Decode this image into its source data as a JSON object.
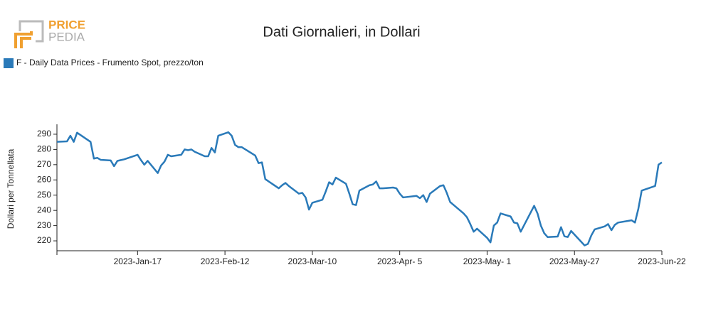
{
  "logo": {
    "top": "PRICE",
    "bottom": "PEDIA"
  },
  "chart_data": {
    "type": "line",
    "title": "Dati Giornalieri, in Dollari",
    "ylabel": "Dollari per Tonnellata",
    "xlim": [
      "2022-12-24",
      "2023-06-22"
    ],
    "xticks": [
      {
        "value": "2023-01-17",
        "label": "2023-Jan-17"
      },
      {
        "value": "2023-02-12",
        "label": "2023-Feb-12"
      },
      {
        "value": "2023-03-10",
        "label": "2023-Mar-10"
      },
      {
        "value": "2023-04-05",
        "label": "2023-Apr- 5"
      },
      {
        "value": "2023-05-01",
        "label": "2023-May- 1"
      },
      {
        "value": "2023-05-27",
        "label": "2023-May-27"
      },
      {
        "value": "2023-06-22",
        "label": "2023-Jun-22"
      }
    ],
    "ylim": [
      213.5,
      296.5
    ],
    "yticks": [
      220,
      230,
      240,
      250,
      260,
      270,
      280,
      290
    ],
    "x": [
      "2022-12-24",
      "2022-12-27",
      "2022-12-28",
      "2022-12-29",
      "2022-12-30",
      "2023-01-03",
      "2023-01-04",
      "2023-01-05",
      "2023-01-06",
      "2023-01-09",
      "2023-01-10",
      "2023-01-11",
      "2023-01-12",
      "2023-01-13",
      "2023-01-17",
      "2023-01-18",
      "2023-01-19",
      "2023-01-20",
      "2023-01-23",
      "2023-01-24",
      "2023-01-25",
      "2023-01-26",
      "2023-01-27",
      "2023-01-30",
      "2023-01-31",
      "2023-02-01",
      "2023-02-02",
      "2023-02-03",
      "2023-02-06",
      "2023-02-07",
      "2023-02-08",
      "2023-02-09",
      "2023-02-10",
      "2023-02-13",
      "2023-02-14",
      "2023-02-15",
      "2023-02-16",
      "2023-02-17",
      "2023-02-21",
      "2023-02-22",
      "2023-02-23",
      "2023-02-24",
      "2023-02-28",
      "2023-03-01",
      "2023-03-02",
      "2023-03-03",
      "2023-03-06",
      "2023-03-07",
      "2023-03-08",
      "2023-03-09",
      "2023-03-10",
      "2023-03-13",
      "2023-03-14",
      "2023-03-15",
      "2023-03-16",
      "2023-03-17",
      "2023-03-20",
      "2023-03-21",
      "2023-03-22",
      "2023-03-23",
      "2023-03-24",
      "2023-03-27",
      "2023-03-28",
      "2023-03-29",
      "2023-03-30",
      "2023-03-31",
      "2023-04-03",
      "2023-04-04",
      "2023-04-05",
      "2023-04-06",
      "2023-04-10",
      "2023-04-11",
      "2023-04-12",
      "2023-04-13",
      "2023-04-14",
      "2023-04-17",
      "2023-04-18",
      "2023-04-19",
      "2023-04-20",
      "2023-04-24",
      "2023-04-25",
      "2023-04-26",
      "2023-04-27",
      "2023-04-28",
      "2023-05-01",
      "2023-05-02",
      "2023-05-03",
      "2023-05-04",
      "2023-05-05",
      "2023-05-08",
      "2023-05-09",
      "2023-05-10",
      "2023-05-11",
      "2023-05-15",
      "2023-05-16",
      "2023-05-17",
      "2023-05-18",
      "2023-05-19",
      "2023-05-22",
      "2023-05-23",
      "2023-05-24",
      "2023-05-25",
      "2023-05-26",
      "2023-05-30",
      "2023-05-31",
      "2023-06-01",
      "2023-06-02",
      "2023-06-05",
      "2023-06-06",
      "2023-06-07",
      "2023-06-08",
      "2023-06-09",
      "2023-06-13",
      "2023-06-14",
      "2023-06-15",
      "2023-06-16",
      "2023-06-20",
      "2023-06-21",
      "2023-06-22"
    ],
    "series": [
      {
        "name": "F - Daily Data Prices - Frumento Spot, prezzo/ton",
        "color": "#2a7ab9",
        "values": [
          285,
          285.3,
          289,
          285,
          291,
          285,
          274,
          274.5,
          273.2,
          272.8,
          269,
          272.5,
          273,
          273.5,
          276.5,
          273,
          270,
          272.5,
          264.5,
          269.5,
          272,
          276.5,
          275.5,
          276.5,
          280,
          279.5,
          280,
          278.5,
          275.5,
          275.5,
          281,
          278,
          289,
          291.3,
          289,
          283,
          281.5,
          281.5,
          276,
          271,
          271.5,
          260.5,
          254.5,
          256.5,
          258,
          256,
          251,
          251.5,
          248.5,
          240.5,
          245,
          247,
          252.5,
          258.5,
          257,
          261.5,
          257.5,
          251,
          244,
          243.5,
          253,
          256.5,
          257,
          259,
          254.5,
          254.5,
          255,
          254.5,
          251,
          248.5,
          249.5,
          248,
          250,
          245.5,
          251,
          256,
          256.5,
          251.5,
          245.5,
          238,
          235.5,
          231,
          226,
          228,
          222,
          219,
          230,
          232,
          238,
          236,
          232,
          231.5,
          226,
          243,
          238,
          230,
          225,
          222.5,
          222.8,
          229,
          223,
          222.5,
          226.5,
          217,
          218,
          223.5,
          227.5,
          229.5,
          231,
          227,
          230.5,
          232,
          233.5,
          232,
          241,
          253,
          256,
          270,
          271.5
        ]
      }
    ]
  }
}
